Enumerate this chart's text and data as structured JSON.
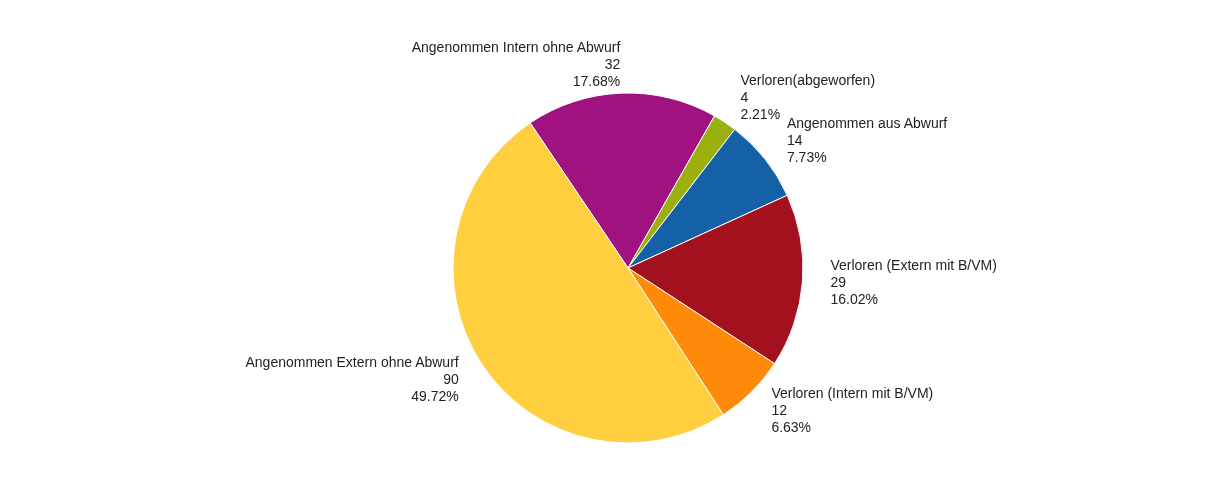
{
  "chart_data": {
    "type": "pie",
    "categories": [
      "Angenommen Intern ohne Abwurf",
      "Verloren(abgeworfen)",
      "Angenommen aus Abwurf",
      "Verloren (Extern mit B/VM)",
      "Verloren (Intern mit B/VM)",
      "Angenommen Extern ohne Abwurf"
    ],
    "values": [
      32,
      4,
      14,
      29,
      12,
      90
    ],
    "colors": [
      "#a0127f",
      "#9bb00f",
      "#1561a8",
      "#a3101e",
      "#ff8a0a",
      "#ffcf40"
    ],
    "value_labels": [
      "32\n17.68%",
      "4\n2.21%",
      "14\n7.73%",
      "29\n16.02%",
      "12\n6.63%",
      "90\n49.72%"
    ],
    "legend": false
  }
}
